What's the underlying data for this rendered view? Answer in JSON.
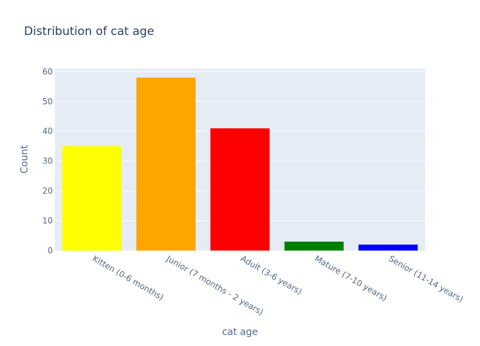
{
  "chart_data": {
    "type": "bar",
    "title": "Distribution of cat age",
    "xlabel": "cat age",
    "ylabel": "Count",
    "categories": [
      "Kitten (0-6 months)",
      "Junior (7 months - 2 years)",
      "Adult (3-6 years)",
      "Mature (7-10 years)",
      "Senior (11-14 years)"
    ],
    "values": [
      35,
      58,
      41,
      3,
      2
    ],
    "colors": [
      "#ffff00",
      "#ffa500",
      "#ff0000",
      "#008000",
      "#0000ff"
    ],
    "ylim": [
      0,
      61
    ],
    "yticks": [
      0,
      10,
      20,
      30,
      40,
      50,
      60
    ],
    "grid": true,
    "legend": "none",
    "plot_background": "#e5ecf6",
    "grid_color": "#ffffff",
    "title_color": "#2a3f5f",
    "tick_label_color": "#506784",
    "axis_title_color": "#506784"
  }
}
